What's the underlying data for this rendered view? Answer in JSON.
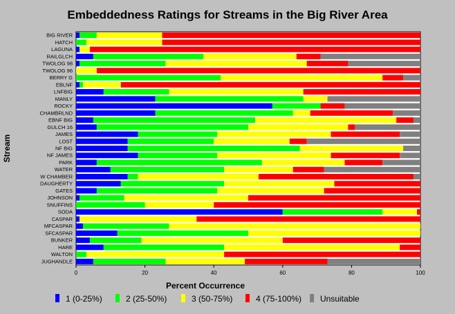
{
  "chart_data": {
    "type": "bar",
    "orientation": "horizontal",
    "stacked": true,
    "title": "Embeddedness Ratings for Streams in the Big River Area",
    "xlabel": "Percent Occurrence",
    "ylabel": "Stream",
    "xlim": [
      0,
      100
    ],
    "xticks": [
      "0",
      "20",
      "40",
      "60",
      "80",
      "100"
    ],
    "grid": false,
    "legend_position": "bottom",
    "categories": [
      "BIG RIVER",
      "HATCH",
      "LAGUNA",
      "RAILGLCH",
      "TWOLOG 98",
      "TWOLOG 96",
      "BERRY G",
      "EBLNF",
      "LNFBIG",
      "MANLY",
      "ROCKY",
      "CHAMBRLND",
      "EBNF BIG",
      "GULCH 16",
      "JAMES",
      "LOST",
      "NF BIG",
      "NF JAMES",
      "PARK",
      "WATER",
      "W CHAMBER",
      "DAUGHERTY",
      "GATES",
      "JOHNSON",
      "SNUFFINS",
      "SODA",
      "CASPAR",
      "MFCASPAR",
      "SFCASPAR",
      "BUNKER",
      "HARE",
      "WALTON",
      "JUGHANDLE"
    ],
    "series": [
      {
        "name": "1  (0-25%)",
        "color": "#0000ff",
        "values": [
          1,
          0,
          1,
          5,
          1,
          0,
          0,
          1,
          8,
          23,
          57,
          23,
          5,
          6,
          18,
          15,
          15,
          18,
          6,
          10,
          15,
          13,
          6,
          1,
          0,
          60,
          1,
          2,
          12,
          4,
          8,
          0,
          5
        ]
      },
      {
        "name": "2  (25-50%)",
        "color": "#00ff00",
        "values": [
          5,
          3,
          0,
          32,
          25,
          0,
          42,
          1,
          19,
          43,
          14,
          40,
          47,
          44,
          23,
          25,
          50,
          23,
          48,
          33,
          3,
          30,
          35,
          13,
          20,
          29,
          0,
          25,
          38,
          15,
          35,
          3,
          21
        ]
      },
      {
        "name": "3  (50-75%)",
        "color": "#ffff00",
        "values": [
          19,
          22,
          3,
          27,
          41,
          6,
          47,
          11,
          39,
          7,
          0,
          5,
          41,
          29,
          33,
          22,
          30,
          33,
          24,
          20,
          35,
          32,
          31,
          36,
          20,
          10,
          34,
          73,
          50,
          41,
          51,
          40,
          23
        ]
      },
      {
        "name": "4  (75-100%)",
        "color": "#ff0000",
        "values": [
          75,
          75,
          96,
          7,
          12,
          94,
          6,
          87,
          34,
          0,
          7,
          24,
          5,
          2,
          20,
          5,
          0,
          20,
          11,
          9,
          45,
          25,
          28,
          50,
          60,
          1,
          65,
          0,
          0,
          40,
          6,
          57,
          24
        ]
      },
      {
        "name": "Unsuitable",
        "color": "#808080",
        "values": [
          0,
          0,
          0,
          29,
          21,
          0,
          5,
          0,
          0,
          27,
          22,
          8,
          2,
          19,
          6,
          33,
          5,
          6,
          11,
          28,
          2,
          0,
          0,
          0,
          0,
          0,
          0,
          0,
          0,
          0,
          0,
          0,
          27
        ]
      }
    ]
  }
}
